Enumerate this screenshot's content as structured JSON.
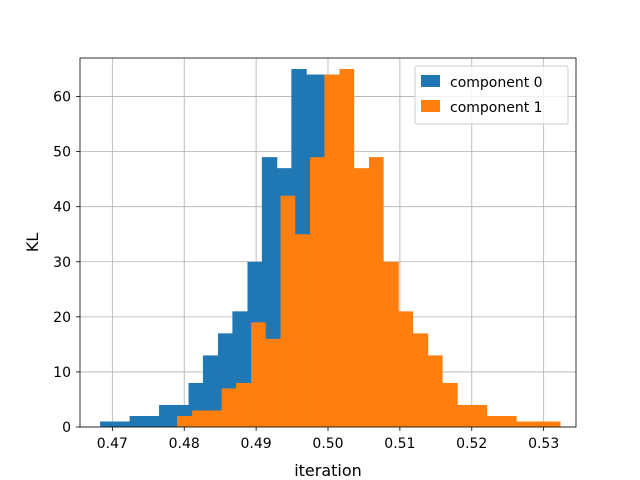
{
  "chart_data": {
    "type": "histogram",
    "title": "",
    "xlabel": "iteration",
    "ylabel": "KL",
    "xlim": [
      0.4655,
      0.5345
    ],
    "ylim": [
      0,
      67
    ],
    "xticks": [
      0.47,
      0.48,
      0.49,
      0.5,
      0.51,
      0.52,
      0.53
    ],
    "xtick_labels": [
      "0.47",
      "0.48",
      "0.49",
      "0.50",
      "0.51",
      "0.52",
      "0.53"
    ],
    "yticks": [
      0,
      10,
      20,
      30,
      40,
      50,
      60
    ],
    "ytick_labels": [
      "0",
      "10",
      "20",
      "30",
      "40",
      "50",
      "60"
    ],
    "grid": true,
    "legend_position": "top-right",
    "series": [
      {
        "name": "component 0",
        "color": "#1f77b4",
        "bin_edges": [
          0.4683,
          0.4703,
          0.4724,
          0.4744,
          0.4765,
          0.4785,
          0.4806,
          0.4826,
          0.4847,
          0.4867,
          0.4888,
          0.4908,
          0.4929,
          0.4949,
          0.497,
          0.499,
          0.501
        ],
        "counts": [
          1,
          1,
          2,
          2,
          4,
          4,
          8,
          13,
          17,
          21,
          30,
          49,
          47,
          65,
          64,
          64
        ]
      },
      {
        "name": "component 1",
        "color": "#ff7f0e",
        "bin_edges": [
          0.479,
          0.4811,
          0.4831,
          0.4852,
          0.4872,
          0.4893,
          0.4913,
          0.4934,
          0.4954,
          0.4975,
          0.4995,
          0.5016,
          0.5036,
          0.5057,
          0.5077,
          0.5098,
          0.5118,
          0.5139,
          0.5159,
          0.518,
          0.52,
          0.5221,
          0.5241,
          0.5262,
          0.5282,
          0.5303,
          0.5323
        ],
        "counts": [
          2,
          3,
          3,
          7,
          8,
          19,
          16,
          42,
          35,
          49,
          64,
          65,
          47,
          49,
          30,
          21,
          17,
          13,
          8,
          4,
          4,
          2,
          2,
          1,
          1,
          1
        ]
      }
    ]
  }
}
